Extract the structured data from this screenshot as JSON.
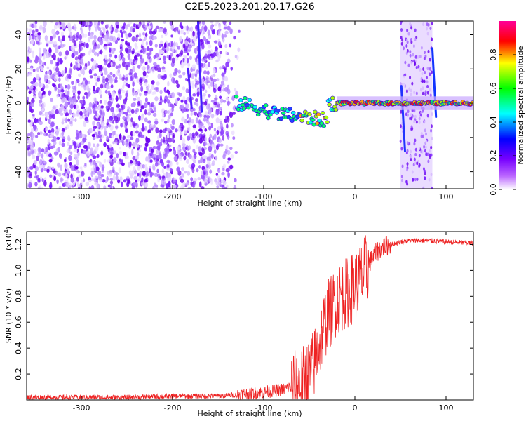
{
  "title": "C2E5.2023.201.20.17.G26",
  "chart_data": [
    {
      "type": "heatmap",
      "xlabel": "Height of straight line (km)",
      "ylabel": "Frequency (Hz)",
      "xlim": [
        -360,
        130
      ],
      "ylim": [
        -50,
        48
      ],
      "xticks": [
        -300,
        -200,
        -100,
        0,
        100
      ],
      "xtick_labels": [
        "-300",
        "-200",
        "-100",
        "0",
        "100"
      ],
      "yticks": [
        -40,
        -20,
        0,
        20,
        40
      ],
      "ytick_labels": [
        "-40",
        "-20",
        "0",
        "20",
        "40"
      ],
      "colorbar": {
        "label": "Normalized spectral amplitude",
        "range": [
          0.0,
          1.0
        ],
        "ticks": [
          0.0,
          0.2,
          0.4,
          0.6,
          0.8
        ],
        "tick_labels": [
          "0.0",
          "0.2",
          "0.4",
          "0.6",
          "0.8"
        ],
        "colormap": [
          "#ffffff",
          "#8800ff",
          "#0000ff",
          "#00ffff",
          "#00ff00",
          "#ffff00",
          "#ff0000",
          "#ff00aa"
        ]
      },
      "features": [
        {
          "kind": "broadband noise",
          "x_range": [
            -360,
            -125
          ],
          "amplitude": 0.15
        },
        {
          "kind": "carrier line",
          "x_range": [
            -130,
            130
          ],
          "frequency": 0,
          "peak_amplitude": 0.85
        },
        {
          "kind": "noise band",
          "x_range": [
            50,
            85
          ],
          "amplitude": 0.15
        }
      ],
      "grid": false
    },
    {
      "type": "line",
      "xlabel": "Height of straight line (km)",
      "ylabel": "SNR (10 * v/v)",
      "scale_label": "(x10",
      "scale_exponent": "4",
      "scale_suffix": ")",
      "xlim": [
        -360,
        130
      ],
      "ylim": [
        0,
        1.3
      ],
      "xticks": [
        -300,
        -200,
        -100,
        0,
        100
      ],
      "xtick_labels": [
        "-300",
        "-200",
        "-100",
        "0",
        "100"
      ],
      "yticks": [
        0.2,
        0.4,
        0.6,
        0.8,
        1.0,
        1.2
      ],
      "ytick_labels": [
        "0.2",
        "0.4",
        "0.6",
        "0.8",
        "1.0",
        "1.2"
      ],
      "color": "#ee2222",
      "series": [
        {
          "x": [
            -360,
            -300,
            -250,
            -200,
            -150,
            -130,
            -110,
            -100,
            -90,
            -80,
            -70,
            -60,
            -50,
            -45,
            -40,
            -35,
            -30,
            -25,
            -20,
            -15,
            -10,
            -5,
            0,
            5,
            10,
            15,
            20,
            25,
            30,
            40,
            50,
            60,
            80,
            100,
            130
          ],
          "values": [
            0.02,
            0.02,
            0.02,
            0.03,
            0.03,
            0.04,
            0.05,
            0.06,
            0.07,
            0.08,
            0.1,
            0.12,
            0.2,
            0.28,
            0.4,
            0.55,
            0.65,
            0.7,
            0.78,
            0.8,
            0.82,
            0.85,
            0.88,
            0.92,
            0.98,
            1.05,
            1.1,
            1.15,
            1.18,
            1.2,
            1.22,
            1.23,
            1.23,
            1.22,
            1.21
          ]
        }
      ],
      "grid": false
    }
  ]
}
